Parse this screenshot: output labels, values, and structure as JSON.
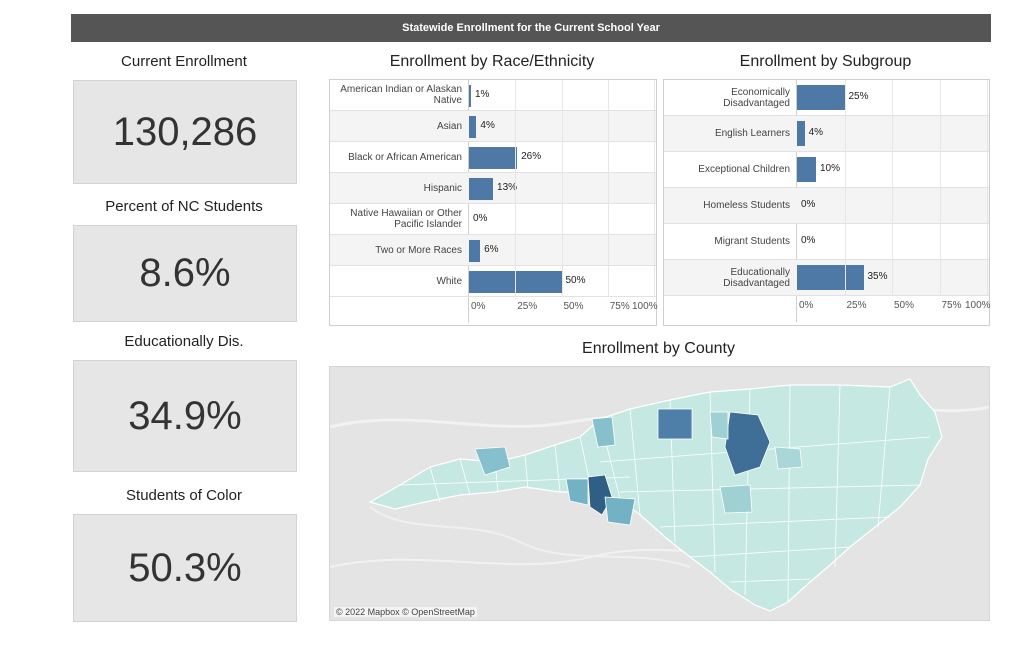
{
  "banner": {
    "title": "Statewide Enrollment for the Current School Year"
  },
  "kpis": [
    {
      "title": "Current Enrollment",
      "value": "130,286"
    },
    {
      "title": "Percent of NC Students",
      "value": "8.6%"
    },
    {
      "title": "Educationally Dis.",
      "value": "34.9%"
    },
    {
      "title": "Students of Color",
      "value": "50.3%"
    }
  ],
  "map": {
    "title": "Enrollment by County",
    "attribution": "© 2022 Mapbox © OpenStreetMap"
  },
  "colors": {
    "bar": "#4e79a7",
    "banner": "#555555",
    "kpi_bg": "#e6e6e6"
  },
  "chart_data": [
    {
      "type": "bar",
      "orientation": "horizontal",
      "title": "Enrollment by Race/Ethnicity",
      "categories": [
        "American Indian or Alaskan Native",
        "Asian",
        "Black or African American",
        "Hispanic",
        "Native Hawaiian or Other Pacific Islander",
        "Two or More Races",
        "White"
      ],
      "values": [
        1,
        4,
        26,
        13,
        0,
        6,
        50
      ],
      "value_labels": [
        "1%",
        "4%",
        "26%",
        "13%",
        "0%",
        "6%",
        "50%"
      ],
      "xlim": [
        0,
        100
      ],
      "xticks": [
        "0%",
        "25%",
        "50%",
        "75%",
        "100%"
      ]
    },
    {
      "type": "bar",
      "orientation": "horizontal",
      "title": "Enrollment by Subgroup",
      "categories": [
        "Economically Disadvantaged",
        "English Learners",
        "Exceptional Children",
        "Homeless Students",
        "Migrant Students",
        "Educationally Disadvantaged"
      ],
      "values": [
        25,
        4,
        10,
        0,
        0,
        35
      ],
      "value_labels": [
        "25%",
        "4%",
        "10%",
        "0%",
        "0%",
        "35%"
      ],
      "xlim": [
        0,
        100
      ],
      "xticks": [
        "0%",
        "25%",
        "50%",
        "75%",
        "100%"
      ]
    }
  ]
}
